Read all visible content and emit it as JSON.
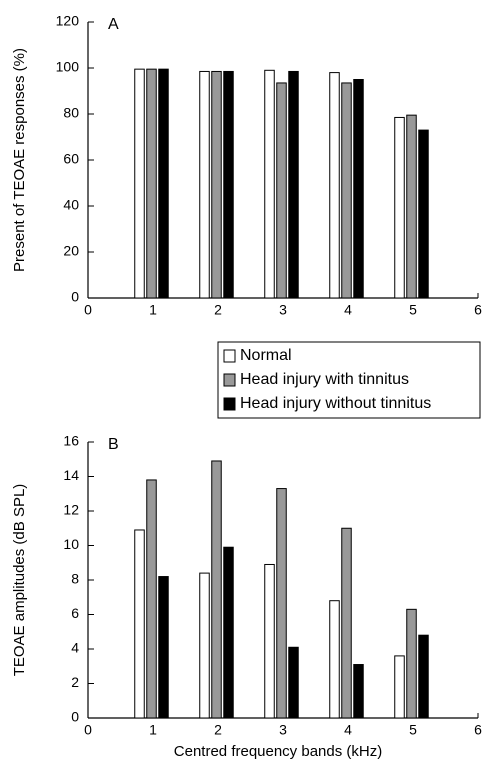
{
  "chart_data": [
    {
      "type": "bar",
      "panel": "A",
      "y_label": "Present of TEOAE responses (%)",
      "x": [
        1,
        2,
        3,
        4,
        5
      ],
      "series": [
        {
          "color": "#ffffff",
          "values": [
            99.5,
            98.5,
            99,
            98,
            78.5
          ]
        },
        {
          "color": "#999999",
          "values": [
            99.5,
            98.5,
            93.5,
            93.5,
            79.5
          ]
        },
        {
          "color": "#000000",
          "values": [
            99.5,
            98.5,
            98.5,
            95,
            73
          ]
        }
      ],
      "xlim": [
        0,
        6
      ],
      "xticks": [
        0,
        1,
        2,
        3,
        4,
        5,
        6
      ],
      "ylim": [
        0,
        120
      ],
      "yticks": [
        0,
        20,
        40,
        60,
        80,
        100,
        120
      ]
    },
    {
      "type": "bar",
      "panel": "B",
      "y_label": "TEOAE amplitudes (dB SPL)",
      "x_label": "Centred frequency bands (kHz)",
      "x": [
        1,
        2,
        3,
        4,
        5
      ],
      "series": [
        {
          "name": "Normal",
          "color": "#ffffff",
          "values": [
            10.9,
            8.4,
            8.9,
            6.8,
            3.6
          ]
        },
        {
          "name": "Head injury with tinnitus",
          "color": "#999999",
          "values": [
            13.8,
            14.9,
            13.3,
            11,
            6.3
          ]
        },
        {
          "name": "Head injury without tinnitus",
          "color": "#000000",
          "values": [
            8.2,
            9.9,
            4.1,
            3.1,
            4.8
          ]
        }
      ],
      "xlim": [
        0,
        6
      ],
      "xticks": [
        0,
        1,
        2,
        3,
        4,
        5,
        6
      ],
      "ylim": [
        0,
        16
      ],
      "yticks": [
        0,
        2,
        4,
        6,
        8,
        10,
        12,
        14,
        16
      ],
      "legend": "top-right"
    }
  ]
}
